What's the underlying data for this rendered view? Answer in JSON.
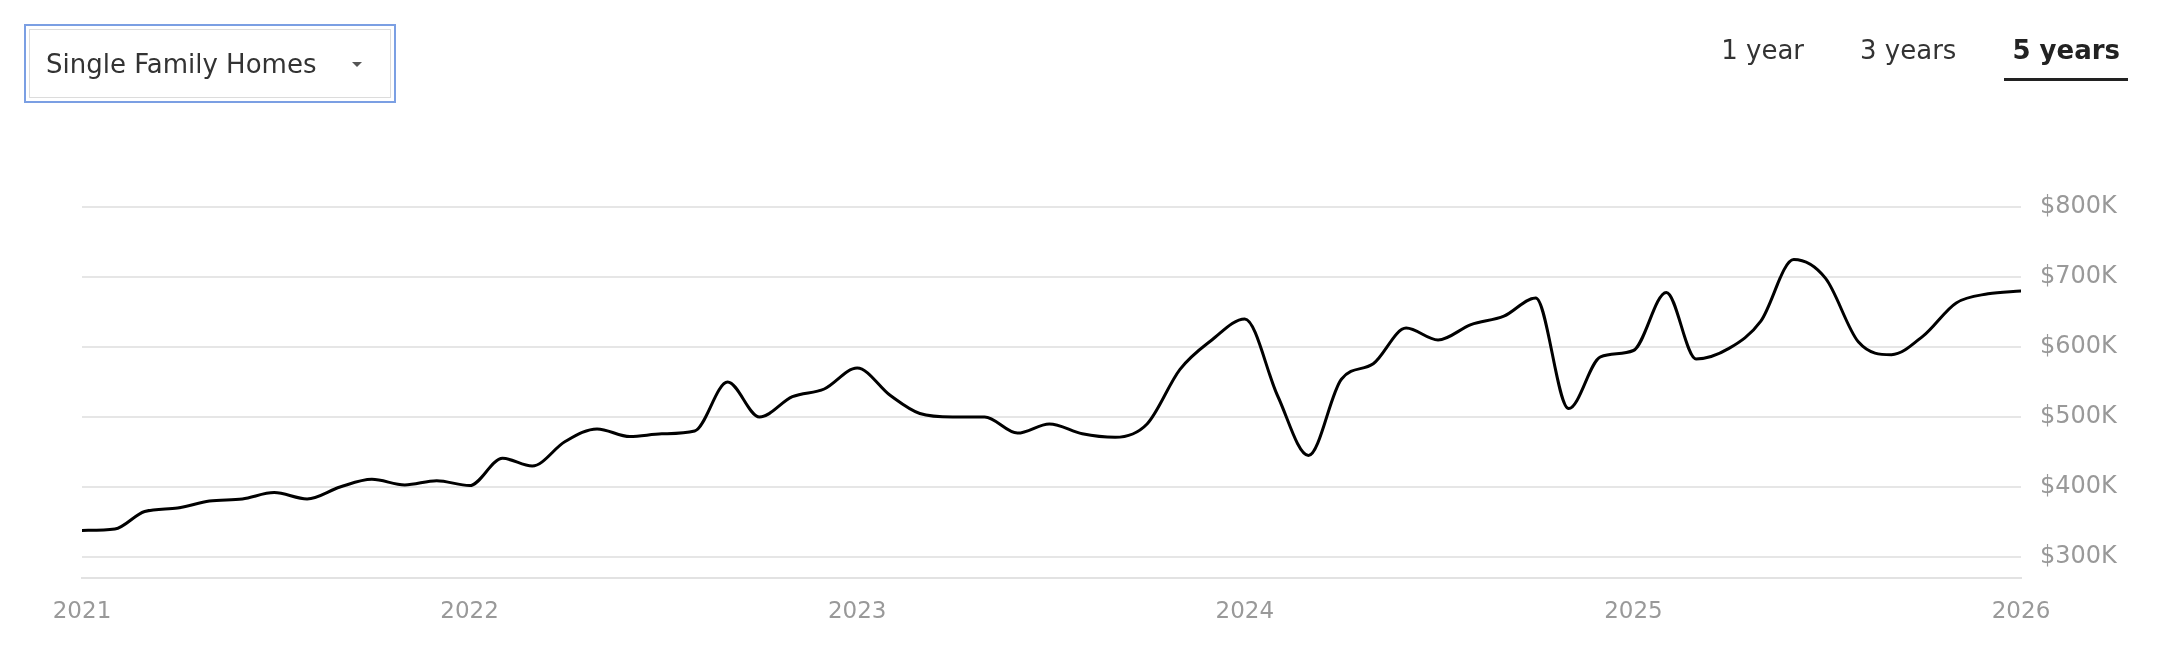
{
  "chart_data": {
    "type": "line",
    "title": "Single Family Homes",
    "annotations": [
      "1 year",
      "3 years",
      "5 years"
    ],
    "x": [
      "2021-01",
      "2021-02",
      "2021-03",
      "2021-04",
      "2021-05",
      "2021-06",
      "2021-07",
      "2021-08",
      "2021-09",
      "2021-10",
      "2021-11",
      "2021-12",
      "2022-01",
      "2022-02",
      "2022-03",
      "2022-04",
      "2022-05",
      "2022-06",
      "2022-07",
      "2022-08",
      "2022-09",
      "2022-10",
      "2022-11",
      "2022-12",
      "2023-01",
      "2023-02",
      "2023-03",
      "2023-04",
      "2023-05",
      "2023-06",
      "2023-07",
      "2023-08",
      "2023-09",
      "2023-10",
      "2023-11",
      "2023-12",
      "2024-01",
      "2024-02",
      "2024-03",
      "2024-04",
      "2024-05",
      "2024-06",
      "2024-07",
      "2024-08",
      "2024-09",
      "2024-10",
      "2024-11",
      "2024-12",
      "2025-01",
      "2025-02",
      "2025-03",
      "2025-04",
      "2025-05",
      "2025-06",
      "2025-07",
      "2025-08",
      "2025-09",
      "2025-10",
      "2025-11",
      "2025-12",
      "2026-01"
    ],
    "series": [
      {
        "color": "#000000",
        "values": [
          338,
          340,
          365,
          370,
          380,
          383,
          392,
          383,
          400,
          411,
          403,
          409,
          402,
          441,
          430,
          465,
          483,
          472,
          476,
          480,
          550,
          500,
          529,
          540,
          570,
          531,
          505,
          500,
          500,
          477,
          490,
          476,
          471,
          490,
          568,
          610,
          640,
          530,
          445,
          554,
          576,
          627,
          610,
          632,
          644,
          670,
          512,
          586,
          595,
          678,
          583,
          598,
          637,
          725,
          698,
          607,
          589,
          616,
          663,
          676,
          680
        ]
      }
    ],
    "xlim": [
      "2021-01",
      "2026-01"
    ],
    "xticks": [
      "2021",
      "2022",
      "2023",
      "2024",
      "2025",
      "2026"
    ],
    "ylim": [
      270,
      800
    ],
    "yticks": [
      {
        "value": 300,
        "label": "$300K"
      },
      {
        "value": 400,
        "label": "$400K"
      },
      {
        "value": 500,
        "label": "$500K"
      },
      {
        "value": 600,
        "label": "$600K"
      },
      {
        "value": 700,
        "label": "$700K"
      },
      {
        "value": 800,
        "label": "$800K"
      }
    ],
    "grid": "y",
    "marker": "none"
  }
}
